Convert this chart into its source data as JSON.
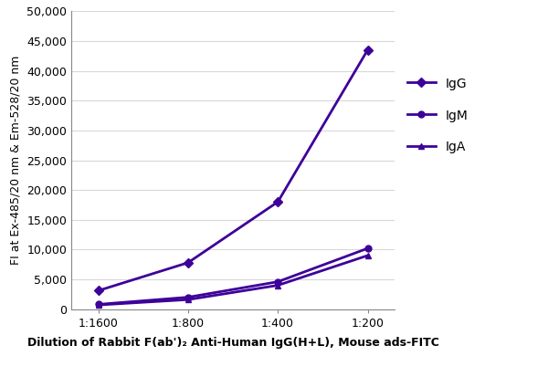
{
  "x_labels": [
    "1:1600",
    "1:800",
    "1:400",
    "1:200"
  ],
  "x_values": [
    0,
    1,
    2,
    3
  ],
  "IgG": [
    3100,
    7800,
    18000,
    43500
  ],
  "IgM": [
    800,
    2000,
    4600,
    10200
  ],
  "IgA": [
    700,
    1600,
    4000,
    9000
  ],
  "line_color": "#3d0099",
  "ylabel": "FI at Ex-485/20 nm & Em-528/20 nm",
  "xlabel": "Dilution of Rabbit F(ab')₂ Anti-Human IgG(H+L), Mouse ads-FITC",
  "ylim": [
    0,
    50000
  ],
  "yticks": [
    0,
    5000,
    10000,
    15000,
    20000,
    25000,
    30000,
    35000,
    40000,
    45000,
    50000
  ],
  "legend_labels": [
    "IgG",
    "IgM",
    "IgA"
  ],
  "bg_color": "#ffffff",
  "plot_bg_color": "#f0f0f0",
  "grid_color": "#d8d8d8"
}
